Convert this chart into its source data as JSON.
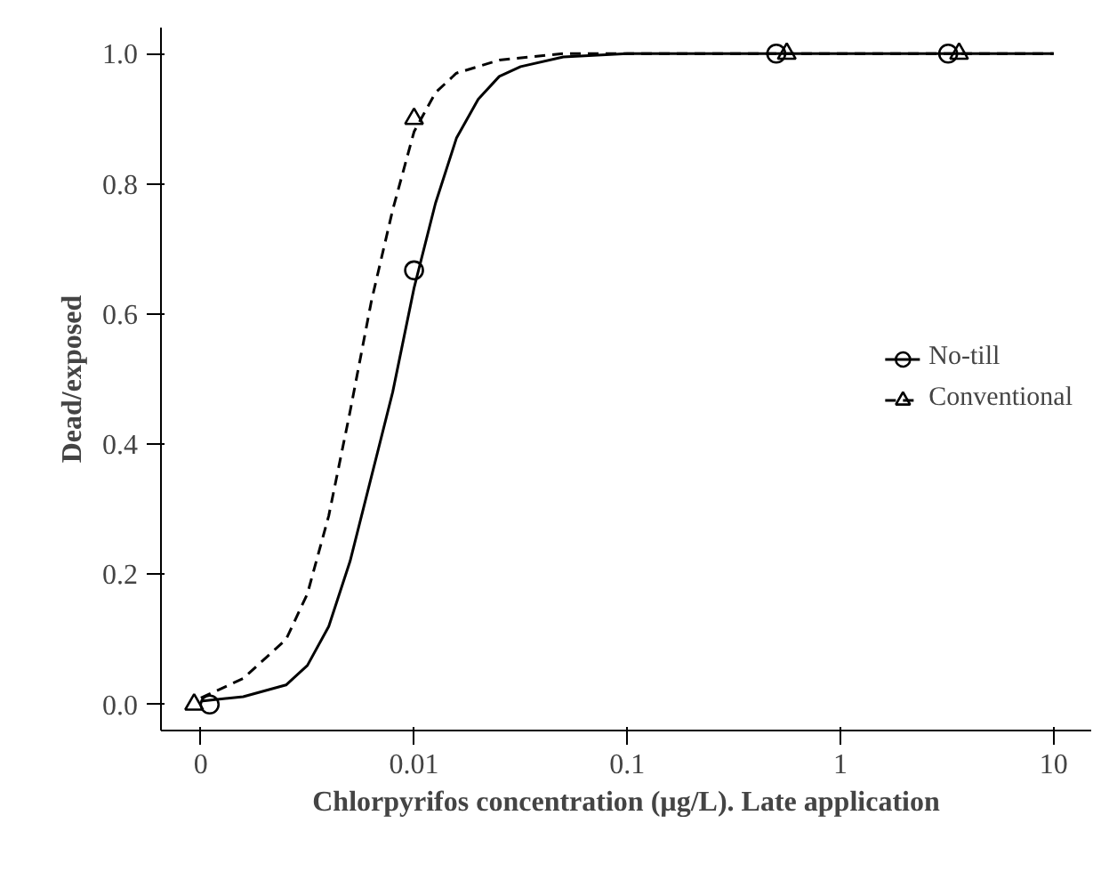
{
  "chart_data": {
    "type": "line",
    "xlabel": "Chlorpyrifos concentration (µg/L). Late application",
    "ylabel": "Dead/exposed",
    "log": "x",
    "xlim": [
      0.00065,
      15
    ],
    "ylim": [
      -0.04,
      1.04
    ],
    "xticks": [
      {
        "value": 0.001,
        "label": "0"
      },
      0.01,
      0.1,
      1,
      10
    ],
    "yticks": [
      {
        "value": 0,
        "label": "0.0"
      },
      0.2,
      0.4,
      0.6,
      0.8,
      {
        "value": 1,
        "label": "1.0"
      }
    ],
    "grid": false,
    "legend": "right",
    "series": [
      {
        "name": "No-till",
        "type": "scatter",
        "marker": "circle",
        "color": "#000000",
        "x": [
          0.0011,
          0.01,
          0.5,
          3.2
        ],
        "values": [
          0,
          0.667,
          1,
          1
        ]
      },
      {
        "line_style": "solid",
        "color": "#000000",
        "x": [
          0.001,
          0.00158,
          0.00251,
          0.00316,
          0.00398,
          0.00501,
          0.00631,
          0.00794,
          0.01,
          0.0126,
          0.0158,
          0.02,
          0.0251,
          0.0316,
          0.0501,
          0.1,
          10
        ],
        "values": [
          0.005,
          0.012,
          0.03,
          0.06,
          0.12,
          0.22,
          0.35,
          0.48,
          0.64,
          0.77,
          0.87,
          0.93,
          0.965,
          0.98,
          0.995,
          1,
          1
        ]
      },
      {
        "name": "Conventional",
        "type": "scatter",
        "marker": "triangle",
        "color": "#000000",
        "x": [
          0.00093,
          0.01,
          0.56,
          3.6
        ],
        "values": [
          0,
          0.9,
          1,
          1
        ]
      },
      {
        "line_style": "dashed",
        "color": "#000000",
        "x": [
          0.001,
          0.00158,
          0.00251,
          0.00316,
          0.00398,
          0.00501,
          0.00631,
          0.00794,
          0.01,
          0.0126,
          0.0158,
          0.0251,
          0.0501,
          10
        ],
        "values": [
          0.01,
          0.04,
          0.1,
          0.17,
          0.29,
          0.45,
          0.62,
          0.76,
          0.88,
          0.94,
          0.97,
          0.99,
          1,
          1
        ]
      }
    ]
  }
}
